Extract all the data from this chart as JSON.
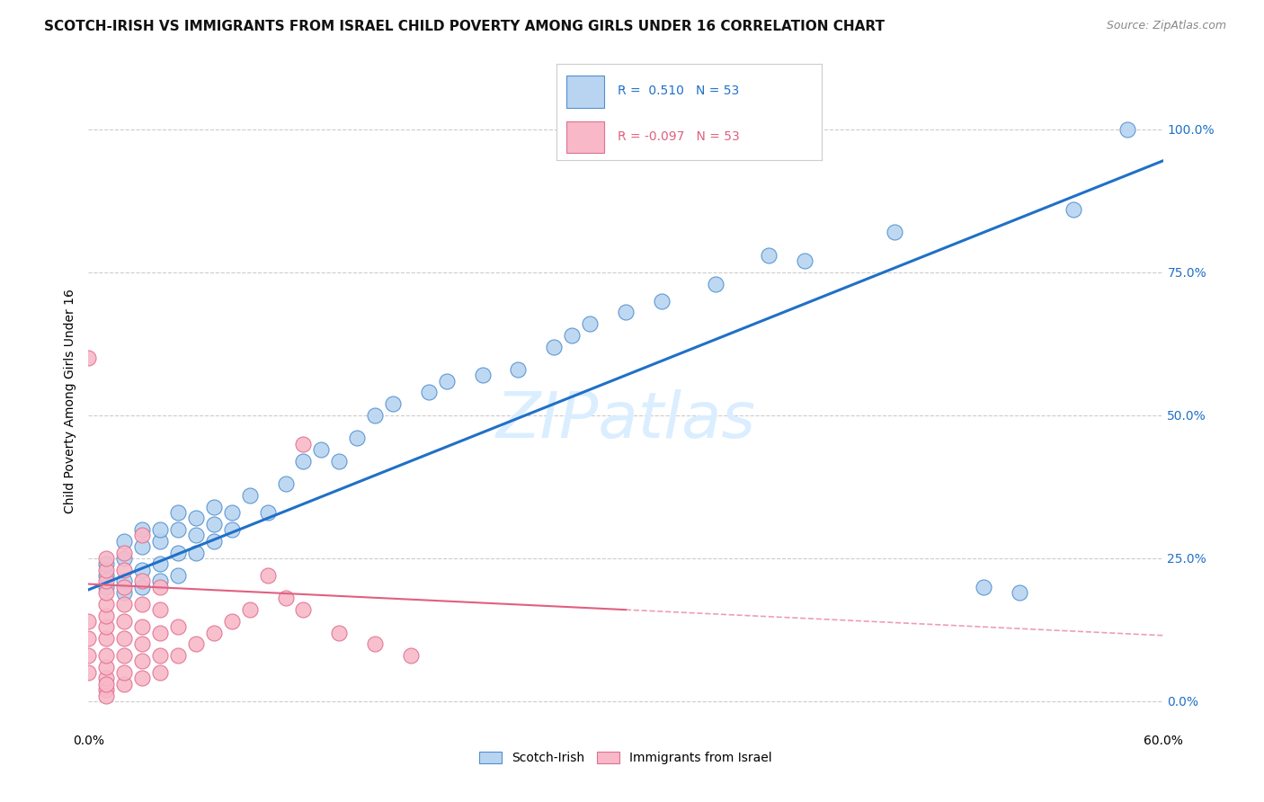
{
  "title": "SCOTCH-IRISH VS IMMIGRANTS FROM ISRAEL CHILD POVERTY AMONG GIRLS UNDER 16 CORRELATION CHART",
  "source": "Source: ZipAtlas.com",
  "ylabel": "Child Poverty Among Girls Under 16",
  "ytick_labels": [
    "0.0%",
    "25.0%",
    "50.0%",
    "75.0%",
    "100.0%"
  ],
  "ytick_values": [
    0.0,
    0.25,
    0.5,
    0.75,
    1.0
  ],
  "xlim": [
    0.0,
    0.6
  ],
  "ylim": [
    -0.05,
    1.1
  ],
  "legend_blue_r": "R =  0.510",
  "legend_blue_n": "N = 53",
  "legend_pink_r": "R = -0.097",
  "legend_pink_n": "N = 53",
  "blue_color": "#b8d4f0",
  "blue_edge_color": "#5090d0",
  "blue_line_color": "#2070c8",
  "pink_color": "#f8b8c8",
  "pink_edge_color": "#e07090",
  "pink_line_color": "#e06080",
  "watermark": "ZIPatlas",
  "watermark_color": "#daeeff",
  "watermark_fontsize": 52,
  "title_fontsize": 11,
  "source_fontsize": 9,
  "axis_label_fontsize": 10,
  "tick_fontsize": 10,
  "background_color": "#ffffff",
  "grid_color": "#cccccc",
  "blue_x": [
    0.01,
    0.01,
    0.01,
    0.02,
    0.02,
    0.02,
    0.02,
    0.03,
    0.03,
    0.03,
    0.03,
    0.04,
    0.04,
    0.04,
    0.04,
    0.05,
    0.05,
    0.05,
    0.05,
    0.06,
    0.06,
    0.06,
    0.07,
    0.07,
    0.07,
    0.08,
    0.08,
    0.09,
    0.1,
    0.11,
    0.12,
    0.13,
    0.14,
    0.15,
    0.16,
    0.17,
    0.19,
    0.2,
    0.22,
    0.24,
    0.26,
    0.27,
    0.28,
    0.3,
    0.32,
    0.35,
    0.38,
    0.4,
    0.45,
    0.5,
    0.52,
    0.55,
    0.58
  ],
  "blue_y": [
    0.2,
    0.22,
    0.24,
    0.19,
    0.21,
    0.25,
    0.28,
    0.2,
    0.23,
    0.27,
    0.3,
    0.21,
    0.24,
    0.28,
    0.3,
    0.22,
    0.26,
    0.3,
    0.33,
    0.26,
    0.29,
    0.32,
    0.28,
    0.31,
    0.34,
    0.3,
    0.33,
    0.36,
    0.33,
    0.38,
    0.42,
    0.44,
    0.42,
    0.46,
    0.5,
    0.52,
    0.54,
    0.56,
    0.57,
    0.58,
    0.62,
    0.64,
    0.66,
    0.68,
    0.7,
    0.73,
    0.78,
    0.77,
    0.82,
    0.2,
    0.19,
    0.86,
    1.0
  ],
  "pink_x": [
    0.0,
    0.0,
    0.0,
    0.0,
    0.01,
    0.01,
    0.01,
    0.01,
    0.01,
    0.01,
    0.01,
    0.01,
    0.01,
    0.01,
    0.01,
    0.01,
    0.01,
    0.02,
    0.02,
    0.02,
    0.02,
    0.02,
    0.02,
    0.02,
    0.02,
    0.03,
    0.03,
    0.03,
    0.03,
    0.03,
    0.03,
    0.04,
    0.04,
    0.04,
    0.04,
    0.04,
    0.05,
    0.05,
    0.06,
    0.07,
    0.08,
    0.09,
    0.1,
    0.11,
    0.12,
    0.14,
    0.16,
    0.18,
    0.01,
    0.02,
    0.03,
    0.12,
    0.0
  ],
  "pink_y": [
    0.05,
    0.08,
    0.11,
    0.14,
    0.02,
    0.04,
    0.06,
    0.08,
    0.11,
    0.13,
    0.15,
    0.17,
    0.19,
    0.21,
    0.23,
    0.01,
    0.03,
    0.03,
    0.05,
    0.08,
    0.11,
    0.14,
    0.17,
    0.2,
    0.23,
    0.04,
    0.07,
    0.1,
    0.13,
    0.17,
    0.21,
    0.05,
    0.08,
    0.12,
    0.16,
    0.2,
    0.08,
    0.13,
    0.1,
    0.12,
    0.14,
    0.16,
    0.22,
    0.18,
    0.16,
    0.12,
    0.1,
    0.08,
    0.25,
    0.26,
    0.29,
    0.45,
    0.6
  ]
}
